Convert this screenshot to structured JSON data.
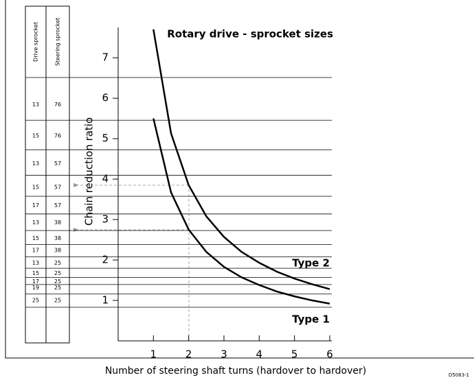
{
  "chart_data": {
    "type": "line",
    "title": "Rotary drive - sprocket sizes",
    "x_label": "Number of steering shaft turns (hardover to hardover)",
    "y_label": "Chain reduction ratio",
    "figure_id": "D5083-1",
    "table_headers": [
      "Drive sprocket",
      "Steering sprocket"
    ],
    "table_rows": [
      [
        13,
        76
      ],
      [
        15,
        76
      ],
      [
        13,
        57
      ],
      [
        15,
        57
      ],
      [
        17,
        57
      ],
      [
        13,
        38
      ],
      [
        15,
        38
      ],
      [
        17,
        38
      ],
      [
        13,
        25
      ],
      [
        15,
        25
      ],
      [
        17,
        25
      ],
      [
        19,
        25
      ],
      [
        25,
        25
      ]
    ],
    "x": [
      1,
      1.5,
      2,
      2.5,
      3,
      3.5,
      4,
      4.5,
      5,
      5.5,
      6
    ],
    "series": [
      {
        "name": "Type 1",
        "color": "#000000",
        "values": [
          5.5,
          3.67,
          2.75,
          2.2,
          1.83,
          1.57,
          1.38,
          1.22,
          1.1,
          1.0,
          0.92
        ]
      },
      {
        "name": "Type 2",
        "color": "#000000",
        "values": [
          7.7,
          5.13,
          3.85,
          3.08,
          2.57,
          2.2,
          1.93,
          1.71,
          1.54,
          1.4,
          1.28
        ]
      }
    ],
    "xlim": [
      0,
      6
    ],
    "xticks": [
      1,
      2,
      3,
      4,
      5,
      6
    ],
    "ylim": [
      0,
      7.75
    ],
    "yticks": [
      1,
      2,
      3,
      4,
      5,
      6,
      7
    ]
  }
}
